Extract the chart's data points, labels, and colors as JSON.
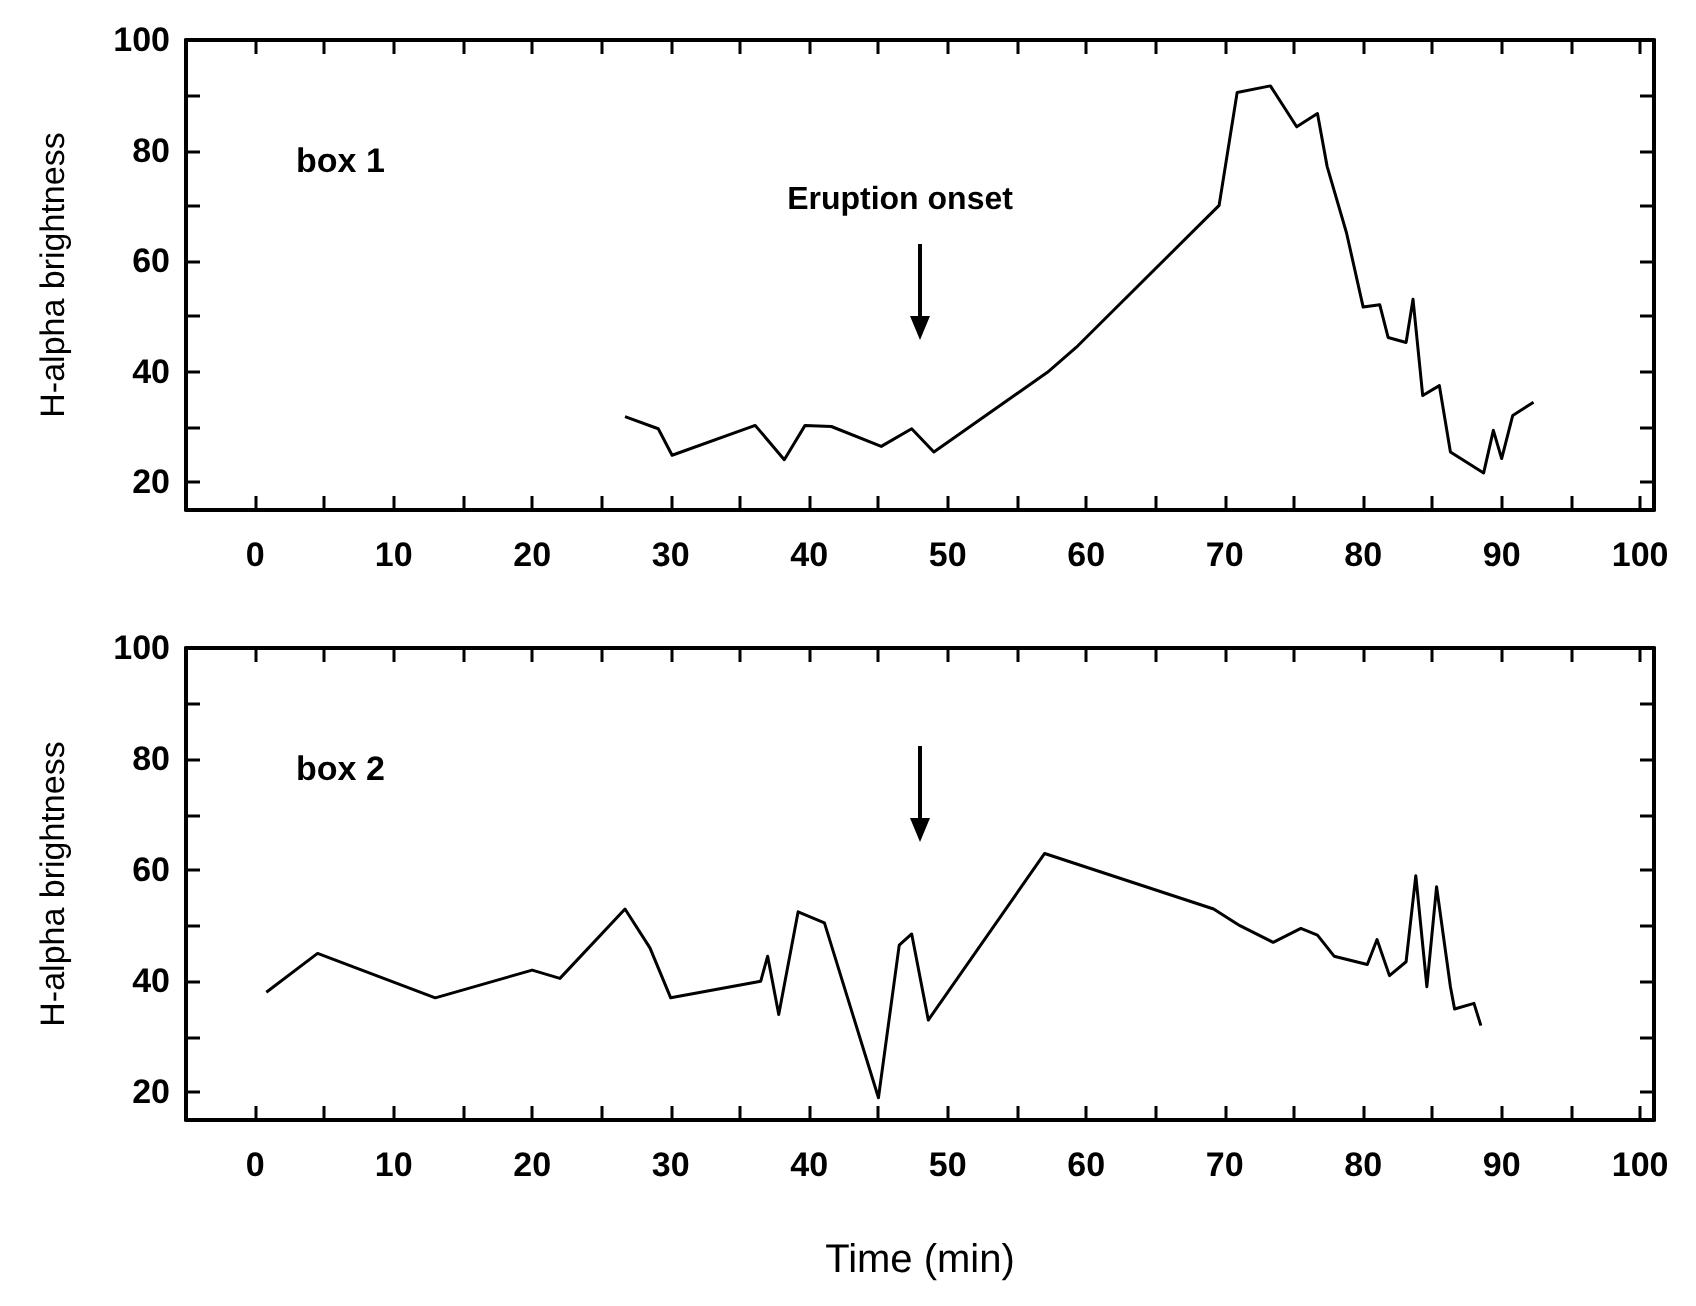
{
  "chart_data": [
    {
      "type": "line",
      "ylabel": "H-alpha brightness",
      "xlim": [
        -5,
        101
      ],
      "ylim": [
        15,
        100
      ],
      "xticks": [
        0,
        {
          "value": 5,
          "label": null
        },
        10,
        {
          "value": 15,
          "label": null
        },
        20,
        {
          "value": 25,
          "label": null
        },
        30,
        {
          "value": 35,
          "label": null
        },
        40,
        {
          "value": 45,
          "label": null
        },
        50,
        {
          "value": 55,
          "label": null
        },
        60,
        {
          "value": 65,
          "label": null
        },
        70,
        {
          "value": 75,
          "label": null
        },
        80,
        {
          "value": 85,
          "label": null
        },
        90,
        {
          "value": 95,
          "label": null
        },
        100
      ],
      "yticks": [
        20,
        {
          "value": 30,
          "label": null
        },
        40,
        {
          "value": 50,
          "label": null
        },
        60,
        {
          "value": 70,
          "label": null
        },
        80,
        {
          "value": 90,
          "label": null
        },
        100
      ],
      "annotations": [
        "box 1",
        "Eruption onset"
      ],
      "series": [
        {
          "color": "#000000",
          "x": [
            26.7,
            29.1,
            30.1,
            36.1,
            38.2,
            39.7,
            41.6,
            45.2,
            47.4,
            49.0,
            57.2,
            59.4,
            69.6,
            70.9,
            73.3,
            75.2,
            76.7,
            77.4,
            78.8,
            80.0,
            81.2,
            81.8,
            83.1,
            83.6,
            84.3,
            85.5,
            86.3,
            88.7,
            89.4,
            90.0,
            90.8,
            92.3
          ],
          "values": [
            31.9,
            29.7,
            24.9,
            30.3,
            24.1,
            30.3,
            30.1,
            26.5,
            29.7,
            25.5,
            39.9,
            44.7,
            70.1,
            90.5,
            91.7,
            84.3,
            86.7,
            77.1,
            65.1,
            51.7,
            52.1,
            46.2,
            45.3,
            53.1,
            35.7,
            37.5,
            25.5,
            21.7,
            29.4,
            24.3,
            32.1,
            34.5
          ]
        }
      ]
    },
    {
      "type": "line",
      "xlabel": "Time (min)",
      "ylabel": "H-alpha brightness",
      "xlim": [
        -5,
        101
      ],
      "ylim": [
        15,
        100
      ],
      "xticks": [
        0,
        {
          "value": 5,
          "label": null
        },
        10,
        {
          "value": 15,
          "label": null
        },
        20,
        {
          "value": 25,
          "label": null
        },
        30,
        {
          "value": 35,
          "label": null
        },
        40,
        {
          "value": 45,
          "label": null
        },
        50,
        {
          "value": 55,
          "label": null
        },
        60,
        {
          "value": 65,
          "label": null
        },
        70,
        {
          "value": 75,
          "label": null
        },
        80,
        {
          "value": 85,
          "label": null
        },
        90,
        {
          "value": 95,
          "label": null
        },
        100
      ],
      "yticks": [
        20,
        {
          "value": 30,
          "label": null
        },
        40,
        {
          "value": 50,
          "label": null
        },
        60,
        {
          "value": 70,
          "label": null
        },
        80,
        {
          "value": 90,
          "label": null
        },
        100
      ],
      "annotations": [
        "box 2"
      ],
      "series": [
        {
          "color": "#000000",
          "x": [
            0.8,
            4.5,
            13,
            20,
            22,
            26.7,
            28.5,
            30,
            36.5,
            37,
            37.8,
            39.2,
            41.1,
            45,
            46.5,
            47.4,
            48.6,
            57,
            69.2,
            71.1,
            73.5,
            75.5,
            76.7,
            77.9,
            80.3,
            81,
            81.9,
            83.1,
            83.8,
            84.6,
            85.3,
            86.3,
            86.6,
            88,
            88.5
          ],
          "values": [
            38,
            45,
            37,
            42,
            40.5,
            53,
            46,
            37,
            40,
            44.5,
            34,
            52.5,
            50.5,
            19,
            46.5,
            48.5,
            33,
            63,
            53,
            50,
            47,
            49.5,
            48.3,
            44.5,
            43,
            47.5,
            41,
            43.5,
            59,
            39,
            57,
            39,
            35,
            36,
            32
          ]
        }
      ]
    }
  ]
}
